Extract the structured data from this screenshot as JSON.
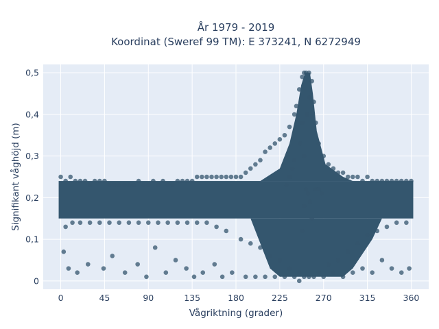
{
  "chart_data": {
    "type": "scatter",
    "title": [
      "År 1979 - 2019",
      "Koordinat (Sweref 99 TM): E 373241, N 6272949"
    ],
    "xlabel": "Vågriktning (grader)",
    "ylabel": "Signifikant våghöjd (m)",
    "xlim": [
      -18,
      378
    ],
    "ylim": [
      -0.02,
      0.52
    ],
    "xticks": [
      0,
      45,
      90,
      135,
      180,
      225,
      270,
      315,
      360
    ],
    "xtick_labels": [
      "0",
      "45",
      "90",
      "135",
      "180",
      "225",
      "270",
      "315",
      "360"
    ],
    "yticks": [
      0,
      0.1,
      0.2,
      0.3,
      0.4,
      0.5
    ],
    "ytick_labels": [
      "0",
      "0,1",
      "0,2",
      "0,3",
      "0,4",
      "0,5"
    ],
    "grid": true,
    "legend": "none",
    "marker_color": "#34566e",
    "background_color": "#e5ecf6",
    "series": [
      {
        "x": [
          0,
          5,
          10,
          15,
          20,
          25,
          30,
          35,
          40,
          45,
          50,
          55,
          60,
          65,
          70,
          75,
          80,
          85,
          90,
          95,
          100,
          105,
          110,
          115,
          120,
          125,
          130,
          135,
          140,
          145,
          150,
          155,
          160,
          165,
          170,
          175,
          180,
          185,
          190,
          195,
          200,
          205,
          210,
          215,
          220,
          225,
          230,
          235,
          240,
          242,
          245,
          248,
          250,
          252,
          255,
          258,
          260,
          262,
          265,
          270,
          275,
          280,
          285,
          290,
          295,
          300,
          305,
          310,
          315,
          320,
          325,
          330,
          335,
          340,
          345,
          350,
          355,
          360,
          5,
          12,
          20,
          30,
          40,
          50,
          60,
          70,
          80,
          90,
          100,
          110,
          120,
          130,
          140,
          150,
          160,
          170,
          185,
          195,
          205,
          215,
          225,
          235,
          245,
          255,
          265,
          275,
          285,
          295,
          305,
          315,
          325,
          335,
          345,
          355,
          3,
          8,
          17,
          28,
          44,
          53,
          66,
          79,
          88,
          97,
          108,
          118,
          129,
          137,
          146,
          158,
          166,
          176,
          190,
          200,
          210,
          220,
          230,
          240,
          250,
          260,
          270,
          280,
          290,
          300,
          310,
          320,
          330,
          340,
          350,
          358,
          245,
          248,
          250,
          252,
          254,
          256,
          258,
          250,
          253,
          255,
          248,
          246,
          262,
          240,
          238,
          235,
          232,
          265,
          268
        ],
        "y": [
          0.25,
          0.24,
          0.25,
          0.24,
          0.24,
          0.24,
          0.23,
          0.24,
          0.24,
          0.24,
          0.23,
          0.23,
          0.23,
          0.23,
          0.23,
          0.23,
          0.24,
          0.23,
          0.23,
          0.24,
          0.23,
          0.24,
          0.23,
          0.23,
          0.24,
          0.24,
          0.24,
          0.24,
          0.25,
          0.25,
          0.25,
          0.25,
          0.25,
          0.25,
          0.25,
          0.25,
          0.25,
          0.25,
          0.26,
          0.27,
          0.28,
          0.29,
          0.31,
          0.32,
          0.33,
          0.34,
          0.35,
          0.37,
          0.4,
          0.42,
          0.46,
          0.49,
          0.5,
          0.5,
          0.5,
          0.48,
          0.43,
          0.38,
          0.33,
          0.3,
          0.28,
          0.27,
          0.26,
          0.26,
          0.25,
          0.25,
          0.25,
          0.24,
          0.25,
          0.24,
          0.24,
          0.24,
          0.24,
          0.24,
          0.24,
          0.24,
          0.24,
          0.24,
          0.13,
          0.14,
          0.14,
          0.14,
          0.14,
          0.14,
          0.14,
          0.14,
          0.14,
          0.14,
          0.14,
          0.14,
          0.14,
          0.14,
          0.14,
          0.14,
          0.13,
          0.12,
          0.1,
          0.09,
          0.08,
          0.06,
          0.05,
          0.03,
          0.02,
          0.01,
          0.02,
          0.04,
          0.05,
          0.07,
          0.09,
          0.11,
          0.12,
          0.13,
          0.14,
          0.14,
          0.07,
          0.03,
          0.02,
          0.04,
          0.03,
          0.06,
          0.02,
          0.04,
          0.01,
          0.08,
          0.02,
          0.05,
          0.03,
          0.01,
          0.02,
          0.04,
          0.01,
          0.02,
          0.01,
          0.01,
          0.01,
          0.01,
          0.01,
          0.01,
          0.01,
          0.01,
          0.01,
          0.02,
          0.01,
          0.02,
          0.03,
          0.02,
          0.05,
          0.03,
          0.02,
          0.03,
          0.0,
          0.12,
          0.18,
          0.22,
          0.21,
          0.19,
          0.15,
          0.3,
          0.4,
          0.44,
          0.38,
          0.33,
          0.22,
          0.29,
          0.27,
          0.25,
          0.23,
          0.22,
          0.21
        ]
      }
    ]
  }
}
